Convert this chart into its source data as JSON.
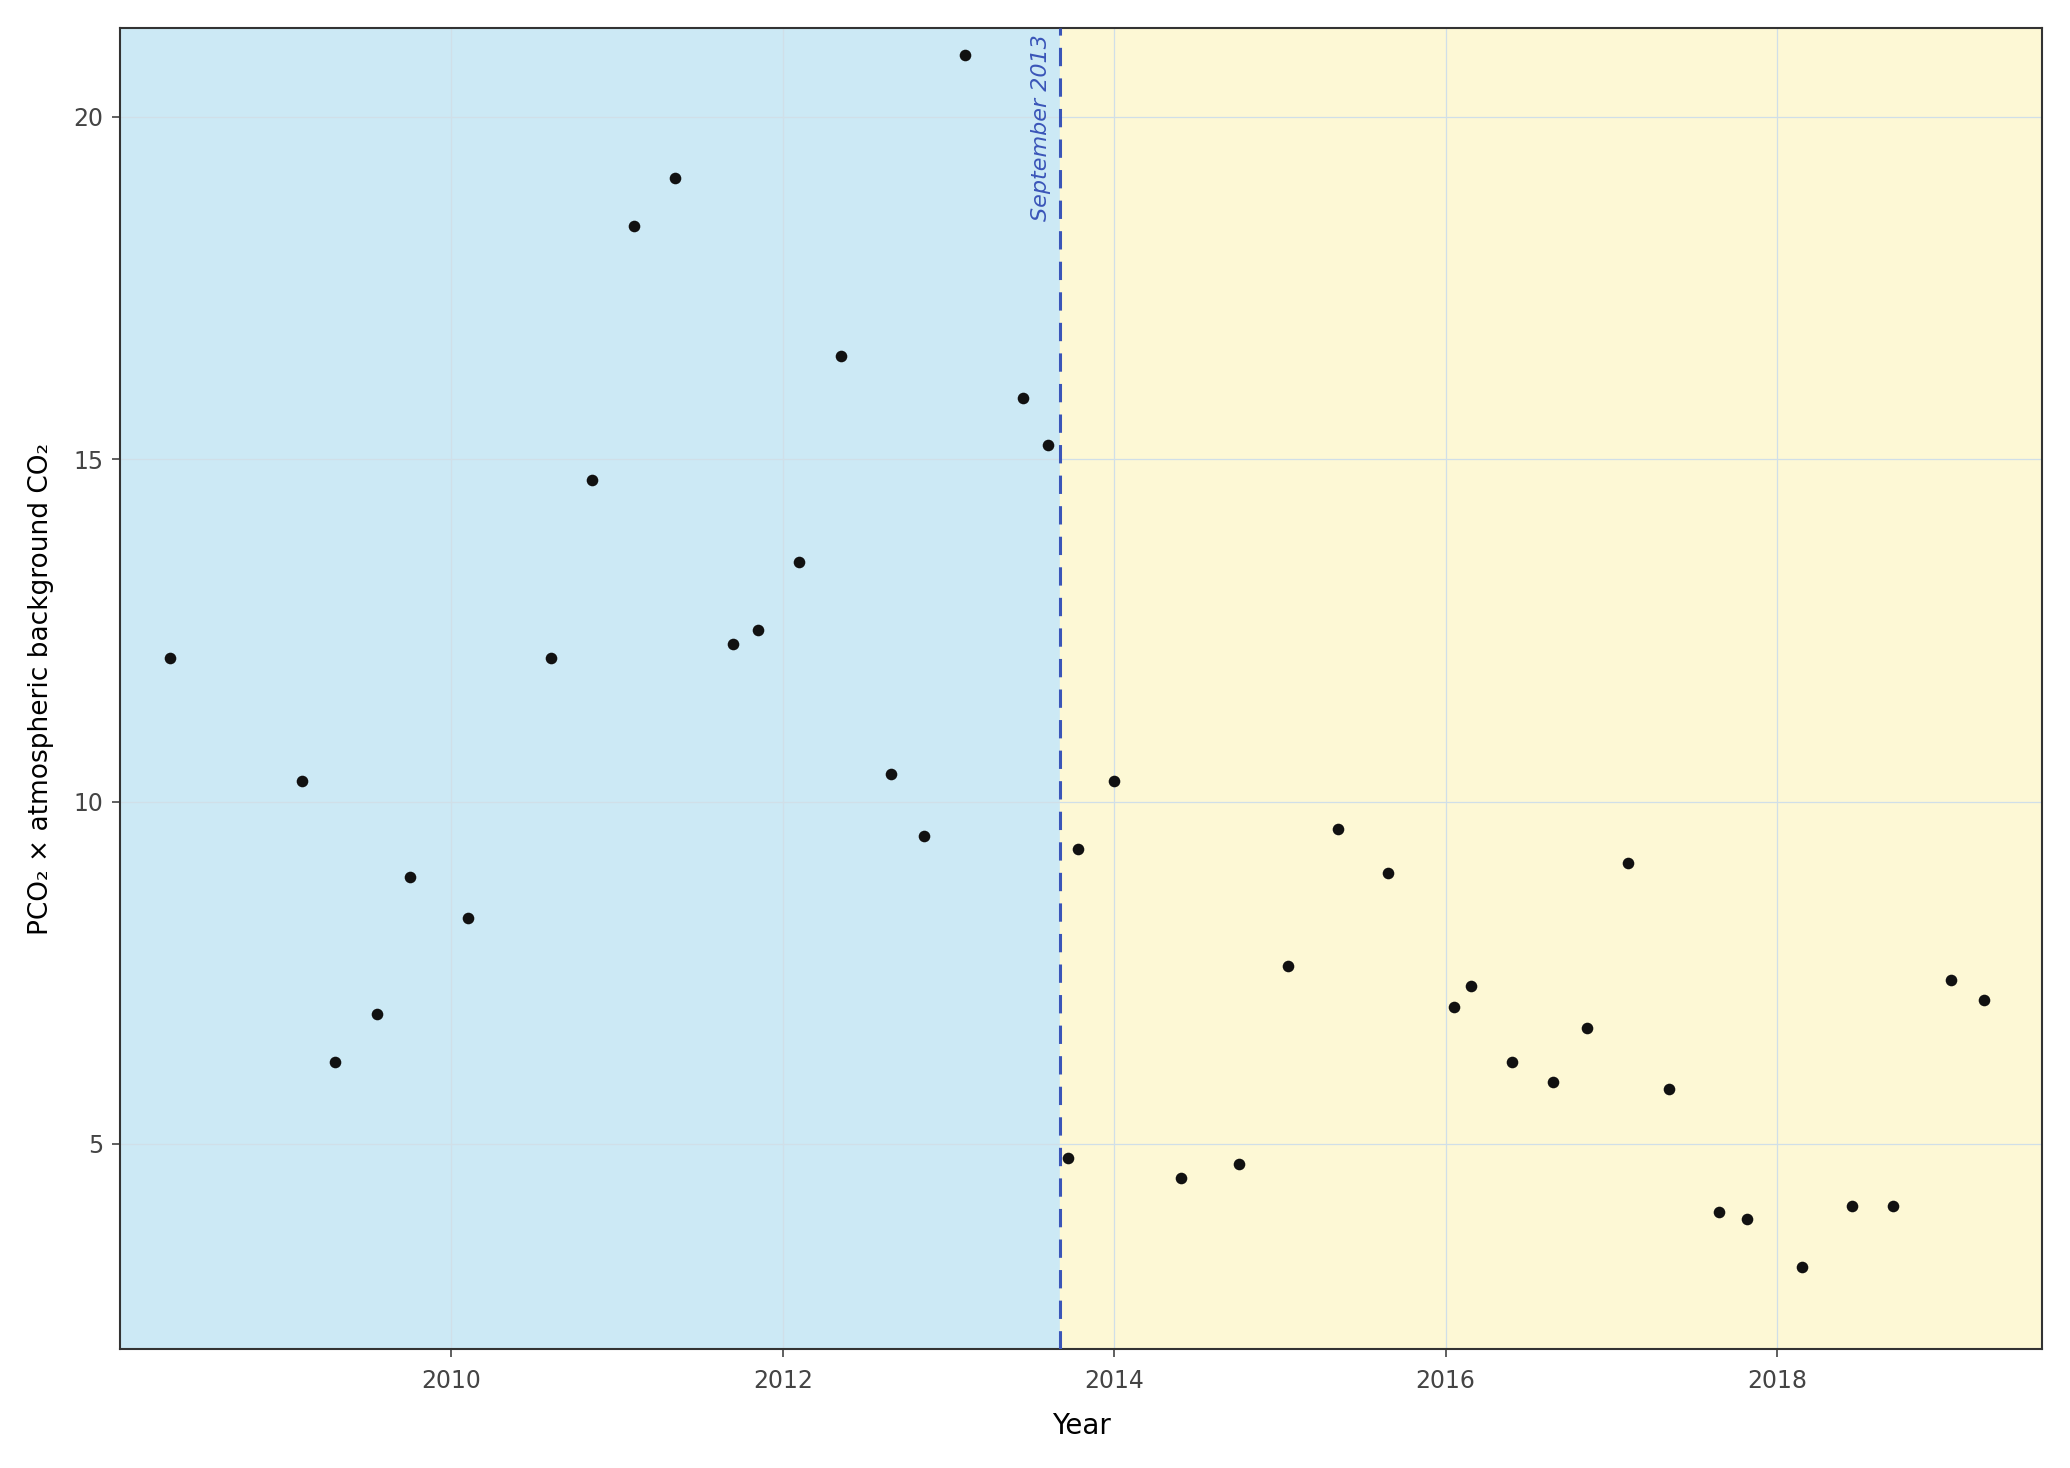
{
  "x_before": [
    2008.3,
    2009.1,
    2009.3,
    2009.55,
    2009.75,
    2010.1,
    2010.6,
    2010.85,
    2011.1,
    2011.35,
    2011.7,
    2011.85,
    2012.1,
    2012.35,
    2012.65,
    2012.85,
    2013.1,
    2013.45,
    2013.6
  ],
  "y_before": [
    12.1,
    10.3,
    6.2,
    6.9,
    8.9,
    8.3,
    12.1,
    14.7,
    18.4,
    19.1,
    12.3,
    12.5,
    13.5,
    16.5,
    10.4,
    9.5,
    20.9,
    15.9,
    15.2
  ],
  "x_after": [
    2013.72,
    2013.78,
    2014.0,
    2014.4,
    2014.75,
    2015.05,
    2015.35,
    2015.65,
    2016.05,
    2016.15,
    2016.4,
    2016.65,
    2016.85,
    2017.1,
    2017.35,
    2017.65,
    2017.82,
    2018.15,
    2018.45,
    2018.7,
    2019.05,
    2019.25
  ],
  "y_after": [
    4.8,
    9.3,
    10.3,
    4.5,
    4.7,
    7.6,
    9.6,
    8.95,
    7.0,
    7.3,
    6.2,
    5.9,
    6.7,
    9.1,
    5.8,
    4.0,
    3.9,
    3.2,
    4.1,
    4.1,
    7.4,
    7.1
  ],
  "vline_x": 2013.67,
  "vline_label": "September 2013",
  "vline_color": "#3a55b8",
  "bg_before_color": "#cce9f5",
  "bg_after_color": "#fdf8d5",
  "grid_color": "#d0dfe8",
  "xlabel": "Year",
  "ylabel": "PCO₂ × atmospheric background CO₂",
  "xlim": [
    2008.0,
    2019.6
  ],
  "ylim": [
    2.0,
    21.3
  ],
  "yticks": [
    5,
    10,
    15,
    20
  ],
  "xticks": [
    2010,
    2012,
    2014,
    2016,
    2018
  ],
  "dot_color": "#111111",
  "dot_size": 70,
  "xlabel_fontsize": 20,
  "ylabel_fontsize": 19,
  "tick_fontsize": 17,
  "vline_label_fontsize": 16
}
